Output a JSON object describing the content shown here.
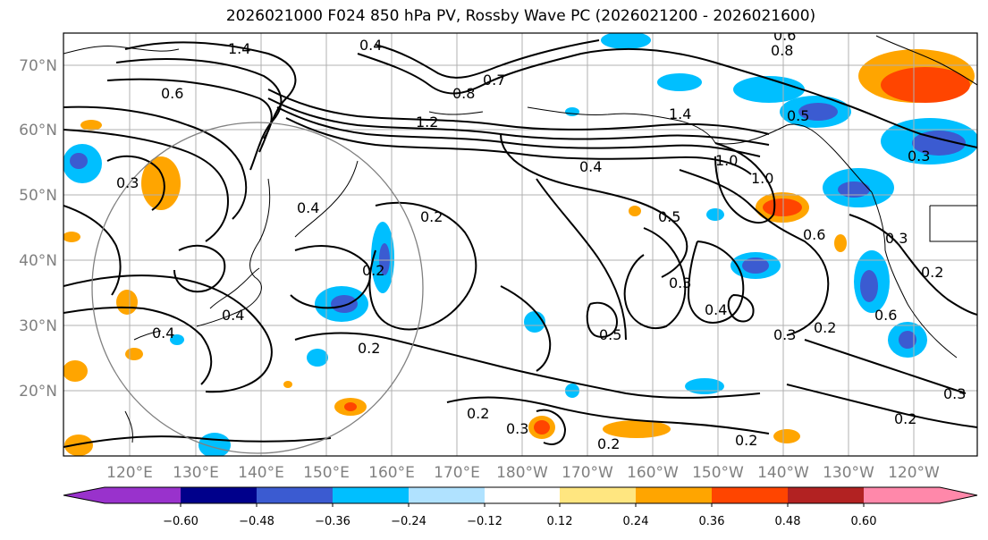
{
  "title": "2026021000 F024 850 hPa PV, Rossby Wave PC (2026021200 - 2026021600)",
  "lat_labels": [
    "70°N",
    "60°N",
    "50°N",
    "40°N",
    "30°N",
    "20°N"
  ],
  "lon_labels": [
    "120°E",
    "130°E",
    "140°E",
    "150°E",
    "160°E",
    "170°E",
    "180°W",
    "170°W",
    "160°W",
    "150°W",
    "140°W",
    "130°W",
    "120°W"
  ],
  "colorbar": {
    "colors": [
      "#9932cc",
      "#00008b",
      "#3b5bd1",
      "#00bfff",
      "#b0e2ff",
      "#ffffff",
      "#ffe680",
      "#ffa500",
      "#ff4500",
      "#b22222",
      "#ff88aa"
    ],
    "ticks": [
      "−0.60",
      "−0.48",
      "−0.36",
      "−0.24",
      "−0.12",
      "0.12",
      "0.24",
      "0.36",
      "0.48",
      "0.60"
    ]
  },
  "contour_labels": [
    "1.4",
    "0.4",
    "0.8",
    "0.6",
    "0.7",
    "0.8",
    "1.2",
    "1.4",
    "1.0",
    "0.6",
    "0.4",
    "0.3",
    "0.5",
    "0.2",
    "0.4",
    "0.3",
    "0.2",
    "0.4",
    "0.2",
    "0.2",
    "0.5",
    "0.3",
    "0.3",
    "0.4",
    "0.3",
    "0.2",
    "0.2",
    "0.3",
    "0.2",
    "0.2",
    "0.6",
    "0.4",
    "0.2",
    "0.3",
    "1.0",
    "0.6",
    "0.5"
  ]
}
